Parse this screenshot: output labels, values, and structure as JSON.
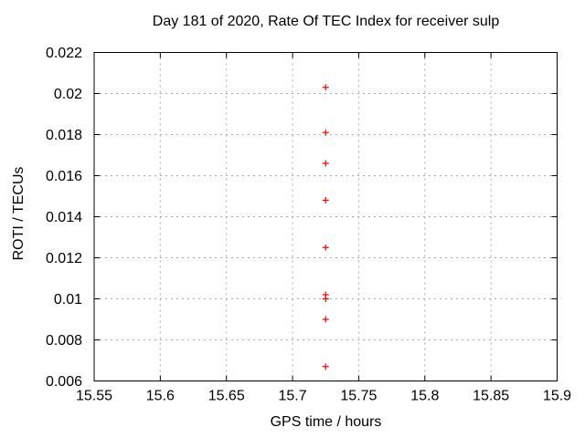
{
  "page": {
    "background": "#ffffff"
  },
  "colors": {
    "background": "#ffffff",
    "border": "#000000",
    "grid": "#a8a8a8",
    "tick": "#000000",
    "text": "#000000",
    "marker": "#ff0000"
  },
  "chart_data": {
    "type": "scatter",
    "title": "Day 181 of 2020, Rate Of TEC Index for receiver sulp",
    "xlabel": "GPS time / hours",
    "ylabel": "ROTI / TECUs",
    "xlim": [
      15.55,
      15.9
    ],
    "ylim": [
      0.006,
      0.022
    ],
    "grid": true,
    "legend": "none",
    "marker": {
      "shape": "plus",
      "color": "#ff0000",
      "size": 7
    },
    "xticks": [
      {
        "value": 15.55,
        "label": "15.55"
      },
      {
        "value": 15.6,
        "label": "15.6"
      },
      {
        "value": 15.65,
        "label": "15.65"
      },
      {
        "value": 15.7,
        "label": "15.7"
      },
      {
        "value": 15.75,
        "label": "15.75"
      },
      {
        "value": 15.8,
        "label": "15.8"
      },
      {
        "value": 15.85,
        "label": "15.85"
      },
      {
        "value": 15.9,
        "label": "15.9"
      }
    ],
    "yticks": [
      {
        "value": 0.006,
        "label": "0.006"
      },
      {
        "value": 0.008,
        "label": "0.008"
      },
      {
        "value": 0.01,
        "label": "0.01"
      },
      {
        "value": 0.012,
        "label": "0.012"
      },
      {
        "value": 0.014,
        "label": "0.014"
      },
      {
        "value": 0.016,
        "label": "0.016"
      },
      {
        "value": 0.018,
        "label": "0.018"
      },
      {
        "value": 0.02,
        "label": "0.02"
      },
      {
        "value": 0.022,
        "label": "0.022"
      }
    ],
    "series": [
      {
        "name": "roti",
        "points": [
          [
            15.725,
            0.0203
          ],
          [
            15.725,
            0.0181
          ],
          [
            15.725,
            0.0166
          ],
          [
            15.725,
            0.0148
          ],
          [
            15.725,
            0.0125
          ],
          [
            15.725,
            0.0102
          ],
          [
            15.725,
            0.01
          ],
          [
            15.725,
            0.009
          ],
          [
            15.725,
            0.0067
          ]
        ]
      }
    ]
  }
}
